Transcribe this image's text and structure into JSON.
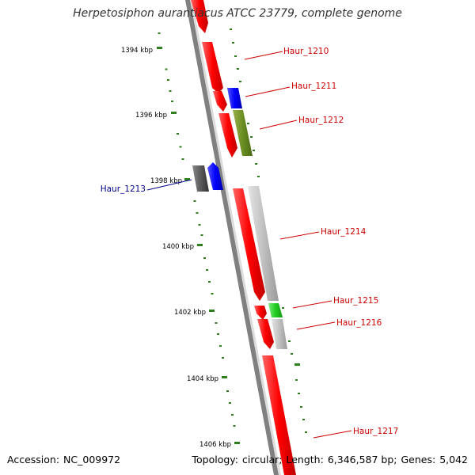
{
  "title": "Herpetosiphon aurantiacus ATCC 23779, complete genome",
  "ruler": {
    "ticks": [
      "1394 kbp",
      "1396 kbp",
      "1398 kbp",
      "1400 kbp",
      "1402 kbp",
      "1404 kbp",
      "1406 kbp"
    ],
    "tick_color": "#2e7d1e"
  },
  "genes": [
    {
      "name": "Haur_1210",
      "label_color": "#cc0000"
    },
    {
      "name": "Haur_1211",
      "label_color": "#cc0000"
    },
    {
      "name": "Haur_1212",
      "label_color": "#cc0000"
    },
    {
      "name": "Haur_1213",
      "label_color": "#00008b"
    },
    {
      "name": "Haur_1214",
      "label_color": "#cc0000"
    },
    {
      "name": "Haur_1215",
      "label_color": "#cc0000"
    },
    {
      "name": "Haur_1216",
      "label_color": "#cc0000"
    },
    {
      "name": "Haur_1217",
      "label_color": "#cc0000"
    }
  ],
  "feature_colors": {
    "cds_red": "#ff0000",
    "cds_blue": "#0000ff",
    "olive": "#6b8e23",
    "gray": "#c0c0c0",
    "dark_gray": "#555555",
    "green": "#22cc22",
    "backbone": "#808080"
  },
  "footer": {
    "accession_label": "Accession:",
    "accession": "NC_009972",
    "topology_label": "Topology:",
    "topology": "circular;",
    "length_label": "Length:",
    "length": "6,346,587 bp;",
    "genes_label": "Genes:",
    "genes": "5,042"
  }
}
